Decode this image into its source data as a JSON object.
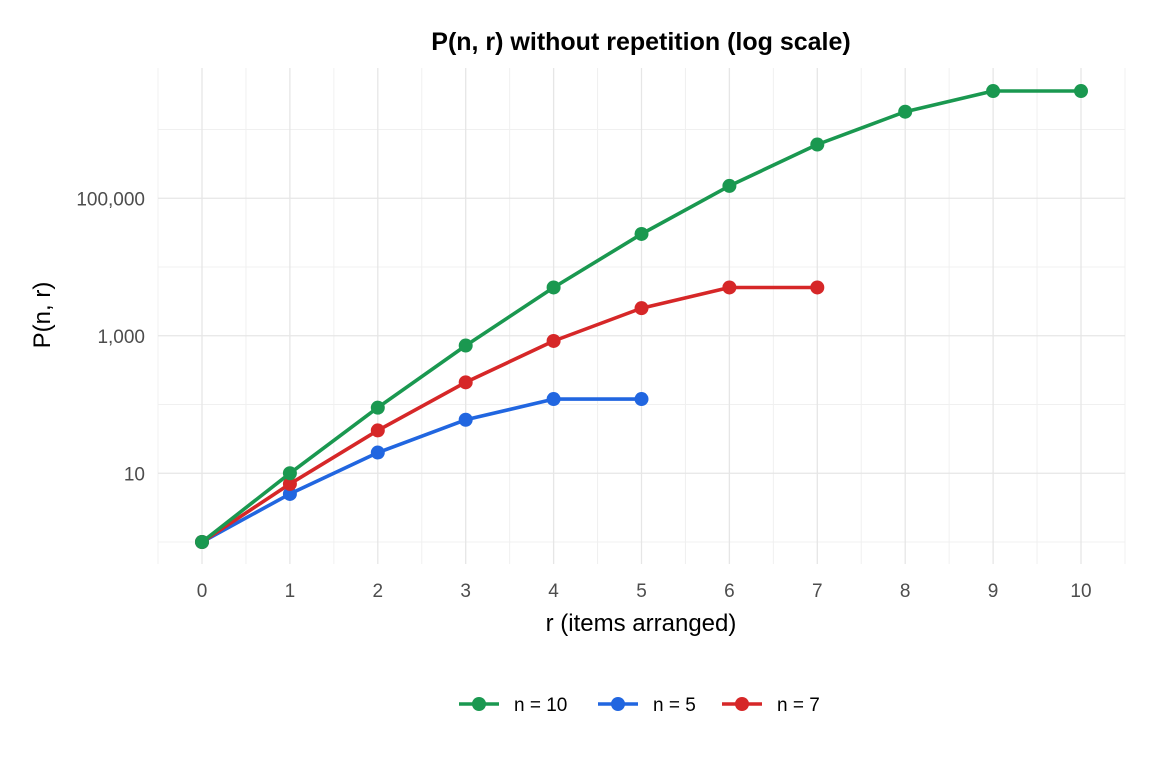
{
  "chart_data": {
    "type": "line",
    "title": "P(n, r) without repetition (log scale)",
    "xlabel": "r (items arranged)",
    "ylabel": "P(n, r)",
    "x_ticks": [
      "0",
      "1",
      "2",
      "3",
      "4",
      "5",
      "6",
      "7",
      "8",
      "9",
      "10"
    ],
    "y_ticks": [
      {
        "value": 10,
        "label": "10"
      },
      {
        "value": 1000,
        "label": "1,000"
      },
      {
        "value": 100000,
        "label": "100,000"
      }
    ],
    "y_scale": "log10",
    "xlim": [
      -0.5,
      10.5
    ],
    "ylim": [
      0.5,
      5000000
    ],
    "grid": true,
    "legend_position": "bottom",
    "series": [
      {
        "name": "n = 10",
        "color": "#1a9850",
        "x": [
          0,
          1,
          2,
          3,
          4,
          5,
          6,
          7,
          8,
          9,
          10
        ],
        "y": [
          1,
          10,
          90,
          720,
          5040,
          30240,
          151200,
          604800,
          1814400,
          3628800,
          3628800
        ]
      },
      {
        "name": "n = 5",
        "color": "#2166e0",
        "x": [
          0,
          1,
          2,
          3,
          4,
          5
        ],
        "y": [
          1,
          5,
          20,
          60,
          120,
          120
        ]
      },
      {
        "name": "n = 7",
        "color": "#d62728",
        "x": [
          0,
          1,
          2,
          3,
          4,
          5,
          6,
          7
        ],
        "y": [
          1,
          7,
          42,
          210,
          840,
          2520,
          5040,
          5040
        ]
      }
    ]
  }
}
